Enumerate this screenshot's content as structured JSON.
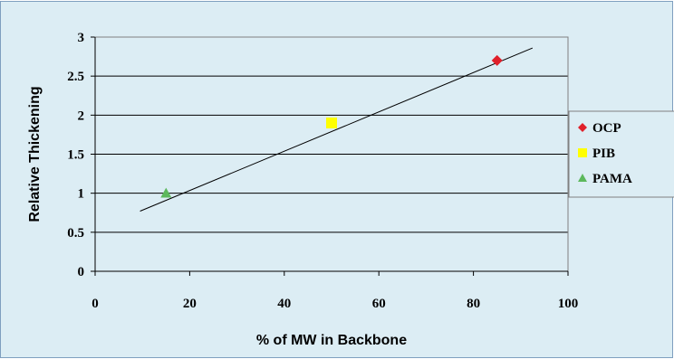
{
  "chart_data": {
    "type": "scatter",
    "title": "",
    "xlabel": "% of MW in Backbone",
    "ylabel": "Relative Thickening",
    "xlim": [
      0,
      100
    ],
    "ylim": [
      0,
      3
    ],
    "x_ticks": [
      "0",
      "20",
      "40",
      "60",
      "80",
      "100"
    ],
    "y_ticks": [
      "0",
      "0.5",
      "1",
      "1.5",
      "2",
      "2.5",
      "3"
    ],
    "grid": "horizontal",
    "legend_position": "right",
    "series": [
      {
        "name": "OCP",
        "marker": "diamond",
        "color": "#e0202a",
        "points": [
          {
            "x": 85,
            "y": 2.7
          }
        ]
      },
      {
        "name": "PIB",
        "marker": "square",
        "color": "#ffff00",
        "points": [
          {
            "x": 50,
            "y": 1.9
          }
        ]
      },
      {
        "name": "PAMA",
        "marker": "triangle",
        "color": "#5cb85c",
        "points": [
          {
            "x": 15,
            "y": 1.0
          }
        ]
      }
    ],
    "trendline": {
      "color": "#000000",
      "from": {
        "x": 9.5,
        "y": 0.77
      },
      "to": {
        "x": 92.5,
        "y": 2.86
      }
    },
    "colors": {
      "background": "#dcedf4",
      "plot_area": "#dcedf4",
      "border": "#7f9fbf",
      "gridline": "#000000"
    }
  }
}
